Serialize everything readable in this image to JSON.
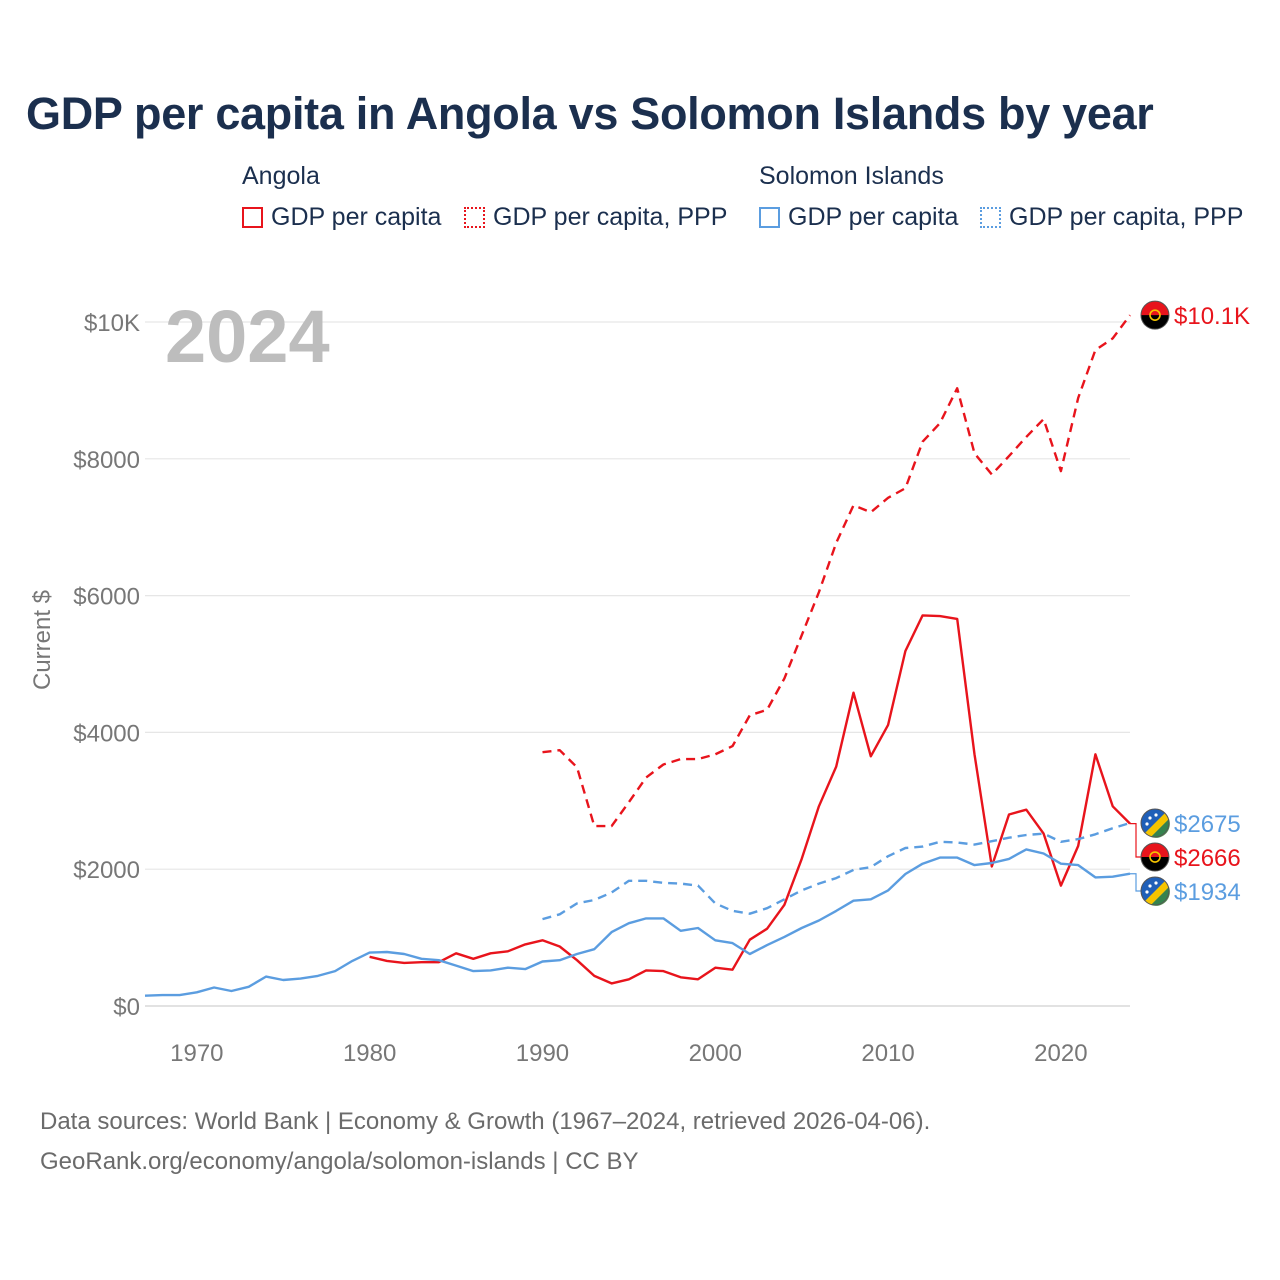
{
  "title": "GDP per capita in Angola vs Solomon Islands by year",
  "legend": {
    "groups": [
      {
        "country": "Angola",
        "items": [
          {
            "label": "GDP per capita"
          },
          {
            "label": "GDP per capita, PPP"
          }
        ]
      },
      {
        "country": "Solomon Islands",
        "items": [
          {
            "label": "GDP per capita"
          },
          {
            "label": "GDP per capita, PPP"
          }
        ]
      }
    ]
  },
  "year_label": "2024",
  "colors": {
    "angola": "#e8141c",
    "solomon": "#5b9de0",
    "title": "#1b2f4e",
    "grid": "#e6e6e6",
    "axis_text": "#777777",
    "year_watermark": "#bdbdbd"
  },
  "chart_data": {
    "type": "line",
    "ylabel": "Current $",
    "xlabel": "",
    "xlim": [
      1967,
      2024
    ],
    "ylim": [
      0,
      10000
    ],
    "x_ticks": [
      1970,
      1980,
      1990,
      2000,
      2010,
      2020
    ],
    "x_tick_labels": [
      "1970",
      "1980",
      "1990",
      "2000",
      "2010",
      "2020"
    ],
    "y_ticks": [
      0,
      2000,
      4000,
      6000,
      8000,
      10000
    ],
    "y_tick_labels": [
      "$0",
      "$2000",
      "$4000",
      "$6000",
      "$8000",
      "$10K"
    ],
    "grid": true,
    "series": [
      {
        "name": "Angola GDP per capita",
        "country": "Angola",
        "style": "solid",
        "color": "#e8141c",
        "end_label": "$2666",
        "points": [
          [
            1980,
            720
          ],
          [
            1981,
            660
          ],
          [
            1982,
            630
          ],
          [
            1983,
            640
          ],
          [
            1984,
            640
          ],
          [
            1985,
            770
          ],
          [
            1986,
            690
          ],
          [
            1987,
            770
          ],
          [
            1988,
            800
          ],
          [
            1989,
            900
          ],
          [
            1990,
            960
          ],
          [
            1991,
            870
          ],
          [
            1992,
            670
          ],
          [
            1993,
            440
          ],
          [
            1994,
            330
          ],
          [
            1995,
            390
          ],
          [
            1996,
            520
          ],
          [
            1997,
            510
          ],
          [
            1998,
            420
          ],
          [
            1999,
            390
          ],
          [
            2000,
            560
          ],
          [
            2001,
            530
          ],
          [
            2002,
            970
          ],
          [
            2003,
            1130
          ],
          [
            2004,
            1480
          ],
          [
            2005,
            2150
          ],
          [
            2006,
            2920
          ],
          [
            2007,
            3500
          ],
          [
            2008,
            4580
          ],
          [
            2009,
            3650
          ],
          [
            2010,
            4110
          ],
          [
            2011,
            5190
          ],
          [
            2012,
            5710
          ],
          [
            2013,
            5700
          ],
          [
            2014,
            5660
          ],
          [
            2015,
            3680
          ],
          [
            2016,
            2040
          ],
          [
            2017,
            2800
          ],
          [
            2018,
            2870
          ],
          [
            2019,
            2520
          ],
          [
            2020,
            1760
          ],
          [
            2021,
            2340
          ],
          [
            2022,
            3680
          ],
          [
            2023,
            2920
          ],
          [
            2024,
            2666
          ]
        ]
      },
      {
        "name": "Angola GDP per capita, PPP",
        "country": "Angola",
        "style": "dashed",
        "color": "#e8141c",
        "end_label": "$10.1K",
        "points": [
          [
            1990,
            3710
          ],
          [
            1991,
            3740
          ],
          [
            1992,
            3490
          ],
          [
            1993,
            2630
          ],
          [
            1994,
            2630
          ],
          [
            1995,
            2980
          ],
          [
            1996,
            3340
          ],
          [
            1997,
            3530
          ],
          [
            1998,
            3610
          ],
          [
            1999,
            3610
          ],
          [
            2000,
            3680
          ],
          [
            2001,
            3800
          ],
          [
            2002,
            4250
          ],
          [
            2003,
            4330
          ],
          [
            2004,
            4790
          ],
          [
            2005,
            5420
          ],
          [
            2006,
            6050
          ],
          [
            2007,
            6770
          ],
          [
            2008,
            7320
          ],
          [
            2009,
            7220
          ],
          [
            2010,
            7430
          ],
          [
            2011,
            7570
          ],
          [
            2012,
            8250
          ],
          [
            2013,
            8520
          ],
          [
            2014,
            9030
          ],
          [
            2015,
            8080
          ],
          [
            2016,
            7770
          ],
          [
            2017,
            8040
          ],
          [
            2018,
            8320
          ],
          [
            2019,
            8580
          ],
          [
            2020,
            7820
          ],
          [
            2021,
            8890
          ],
          [
            2022,
            9590
          ],
          [
            2023,
            9760
          ],
          [
            2024,
            10100
          ]
        ]
      },
      {
        "name": "Solomon Islands GDP per capita",
        "country": "Solomon Islands",
        "style": "solid",
        "color": "#5b9de0",
        "end_label": "$1934",
        "points": [
          [
            1967,
            150
          ],
          [
            1968,
            160
          ],
          [
            1969,
            160
          ],
          [
            1970,
            200
          ],
          [
            1971,
            270
          ],
          [
            1972,
            220
          ],
          [
            1973,
            280
          ],
          [
            1974,
            430
          ],
          [
            1975,
            380
          ],
          [
            1976,
            400
          ],
          [
            1977,
            440
          ],
          [
            1978,
            510
          ],
          [
            1979,
            660
          ],
          [
            1980,
            780
          ],
          [
            1981,
            790
          ],
          [
            1982,
            760
          ],
          [
            1983,
            690
          ],
          [
            1984,
            670
          ],
          [
            1985,
            590
          ],
          [
            1986,
            510
          ],
          [
            1987,
            520
          ],
          [
            1988,
            560
          ],
          [
            1989,
            540
          ],
          [
            1990,
            650
          ],
          [
            1991,
            670
          ],
          [
            1992,
            760
          ],
          [
            1993,
            830
          ],
          [
            1994,
            1080
          ],
          [
            1995,
            1210
          ],
          [
            1996,
            1280
          ],
          [
            1997,
            1280
          ],
          [
            1998,
            1100
          ],
          [
            1999,
            1140
          ],
          [
            2000,
            960
          ],
          [
            2001,
            920
          ],
          [
            2002,
            760
          ],
          [
            2003,
            890
          ],
          [
            2004,
            1010
          ],
          [
            2005,
            1140
          ],
          [
            2006,
            1250
          ],
          [
            2007,
            1390
          ],
          [
            2008,
            1540
          ],
          [
            2009,
            1560
          ],
          [
            2010,
            1690
          ],
          [
            2011,
            1930
          ],
          [
            2012,
            2080
          ],
          [
            2013,
            2170
          ],
          [
            2014,
            2170
          ],
          [
            2015,
            2060
          ],
          [
            2016,
            2090
          ],
          [
            2017,
            2150
          ],
          [
            2018,
            2290
          ],
          [
            2019,
            2230
          ],
          [
            2020,
            2080
          ],
          [
            2021,
            2060
          ],
          [
            2022,
            1880
          ],
          [
            2023,
            1890
          ],
          [
            2024,
            1934
          ]
        ]
      },
      {
        "name": "Solomon Islands GDP per capita, PPP",
        "country": "Solomon Islands",
        "style": "dashed",
        "color": "#5b9de0",
        "end_label": "$2675",
        "points": [
          [
            1990,
            1270
          ],
          [
            1991,
            1340
          ],
          [
            1992,
            1500
          ],
          [
            1993,
            1550
          ],
          [
            1994,
            1660
          ],
          [
            1995,
            1830
          ],
          [
            1996,
            1830
          ],
          [
            1997,
            1800
          ],
          [
            1998,
            1790
          ],
          [
            1999,
            1760
          ],
          [
            2000,
            1500
          ],
          [
            2001,
            1390
          ],
          [
            2002,
            1350
          ],
          [
            2003,
            1430
          ],
          [
            2004,
            1560
          ],
          [
            2005,
            1690
          ],
          [
            2006,
            1790
          ],
          [
            2007,
            1870
          ],
          [
            2008,
            1990
          ],
          [
            2009,
            2030
          ],
          [
            2010,
            2190
          ],
          [
            2011,
            2310
          ],
          [
            2012,
            2330
          ],
          [
            2013,
            2400
          ],
          [
            2014,
            2390
          ],
          [
            2015,
            2360
          ],
          [
            2016,
            2410
          ],
          [
            2017,
            2460
          ],
          [
            2018,
            2500
          ],
          [
            2019,
            2520
          ],
          [
            2020,
            2400
          ],
          [
            2021,
            2440
          ],
          [
            2022,
            2510
          ],
          [
            2023,
            2600
          ],
          [
            2024,
            2675
          ]
        ]
      }
    ]
  },
  "source_lines": [
    "Data sources: World Bank | Economy & Growth (1967–2024, retrieved 2026-04-06).",
    "GeoRank.org/economy/angola/solomon-islands | CC BY"
  ]
}
